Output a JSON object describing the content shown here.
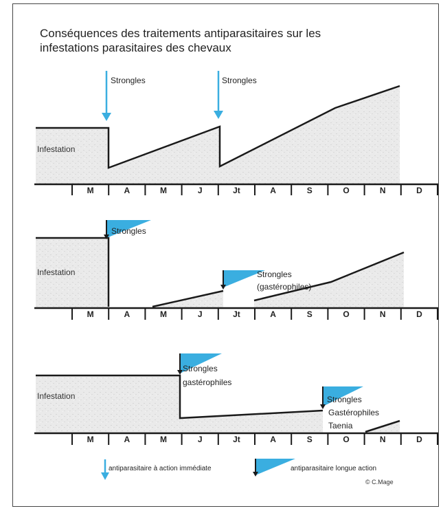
{
  "title": "Conséquences des traitements antiparasitaires sur les infestations parasitaires des chevaux",
  "months": [
    "M",
    "A",
    "M",
    "J",
    "Jt",
    "A",
    "S",
    "O",
    "N",
    "D"
  ],
  "y_label": "Infestation",
  "panel1": {
    "treat1": "Strongles",
    "treat2": "Strongles"
  },
  "panel2": {
    "treat1": "Strongles",
    "treat2_line1": "Strongles",
    "treat2_line2": "(gastérophiles)"
  },
  "panel3": {
    "treat1_line1": "Strongles",
    "treat1_line2": "gastérophiles",
    "treat2_line1": "Strongles",
    "treat2_line2": "Gastérophiles",
    "treat2_line3": "Taenia"
  },
  "legend": {
    "immediate": "antiparasitaire à action immédiate",
    "long_acting": "antiparasitaire longue action"
  },
  "copyright": "© C.Mage",
  "colors": {
    "blue": "#3aaee0",
    "line": "#1a1a1a",
    "fill": "#e4e4e4"
  }
}
